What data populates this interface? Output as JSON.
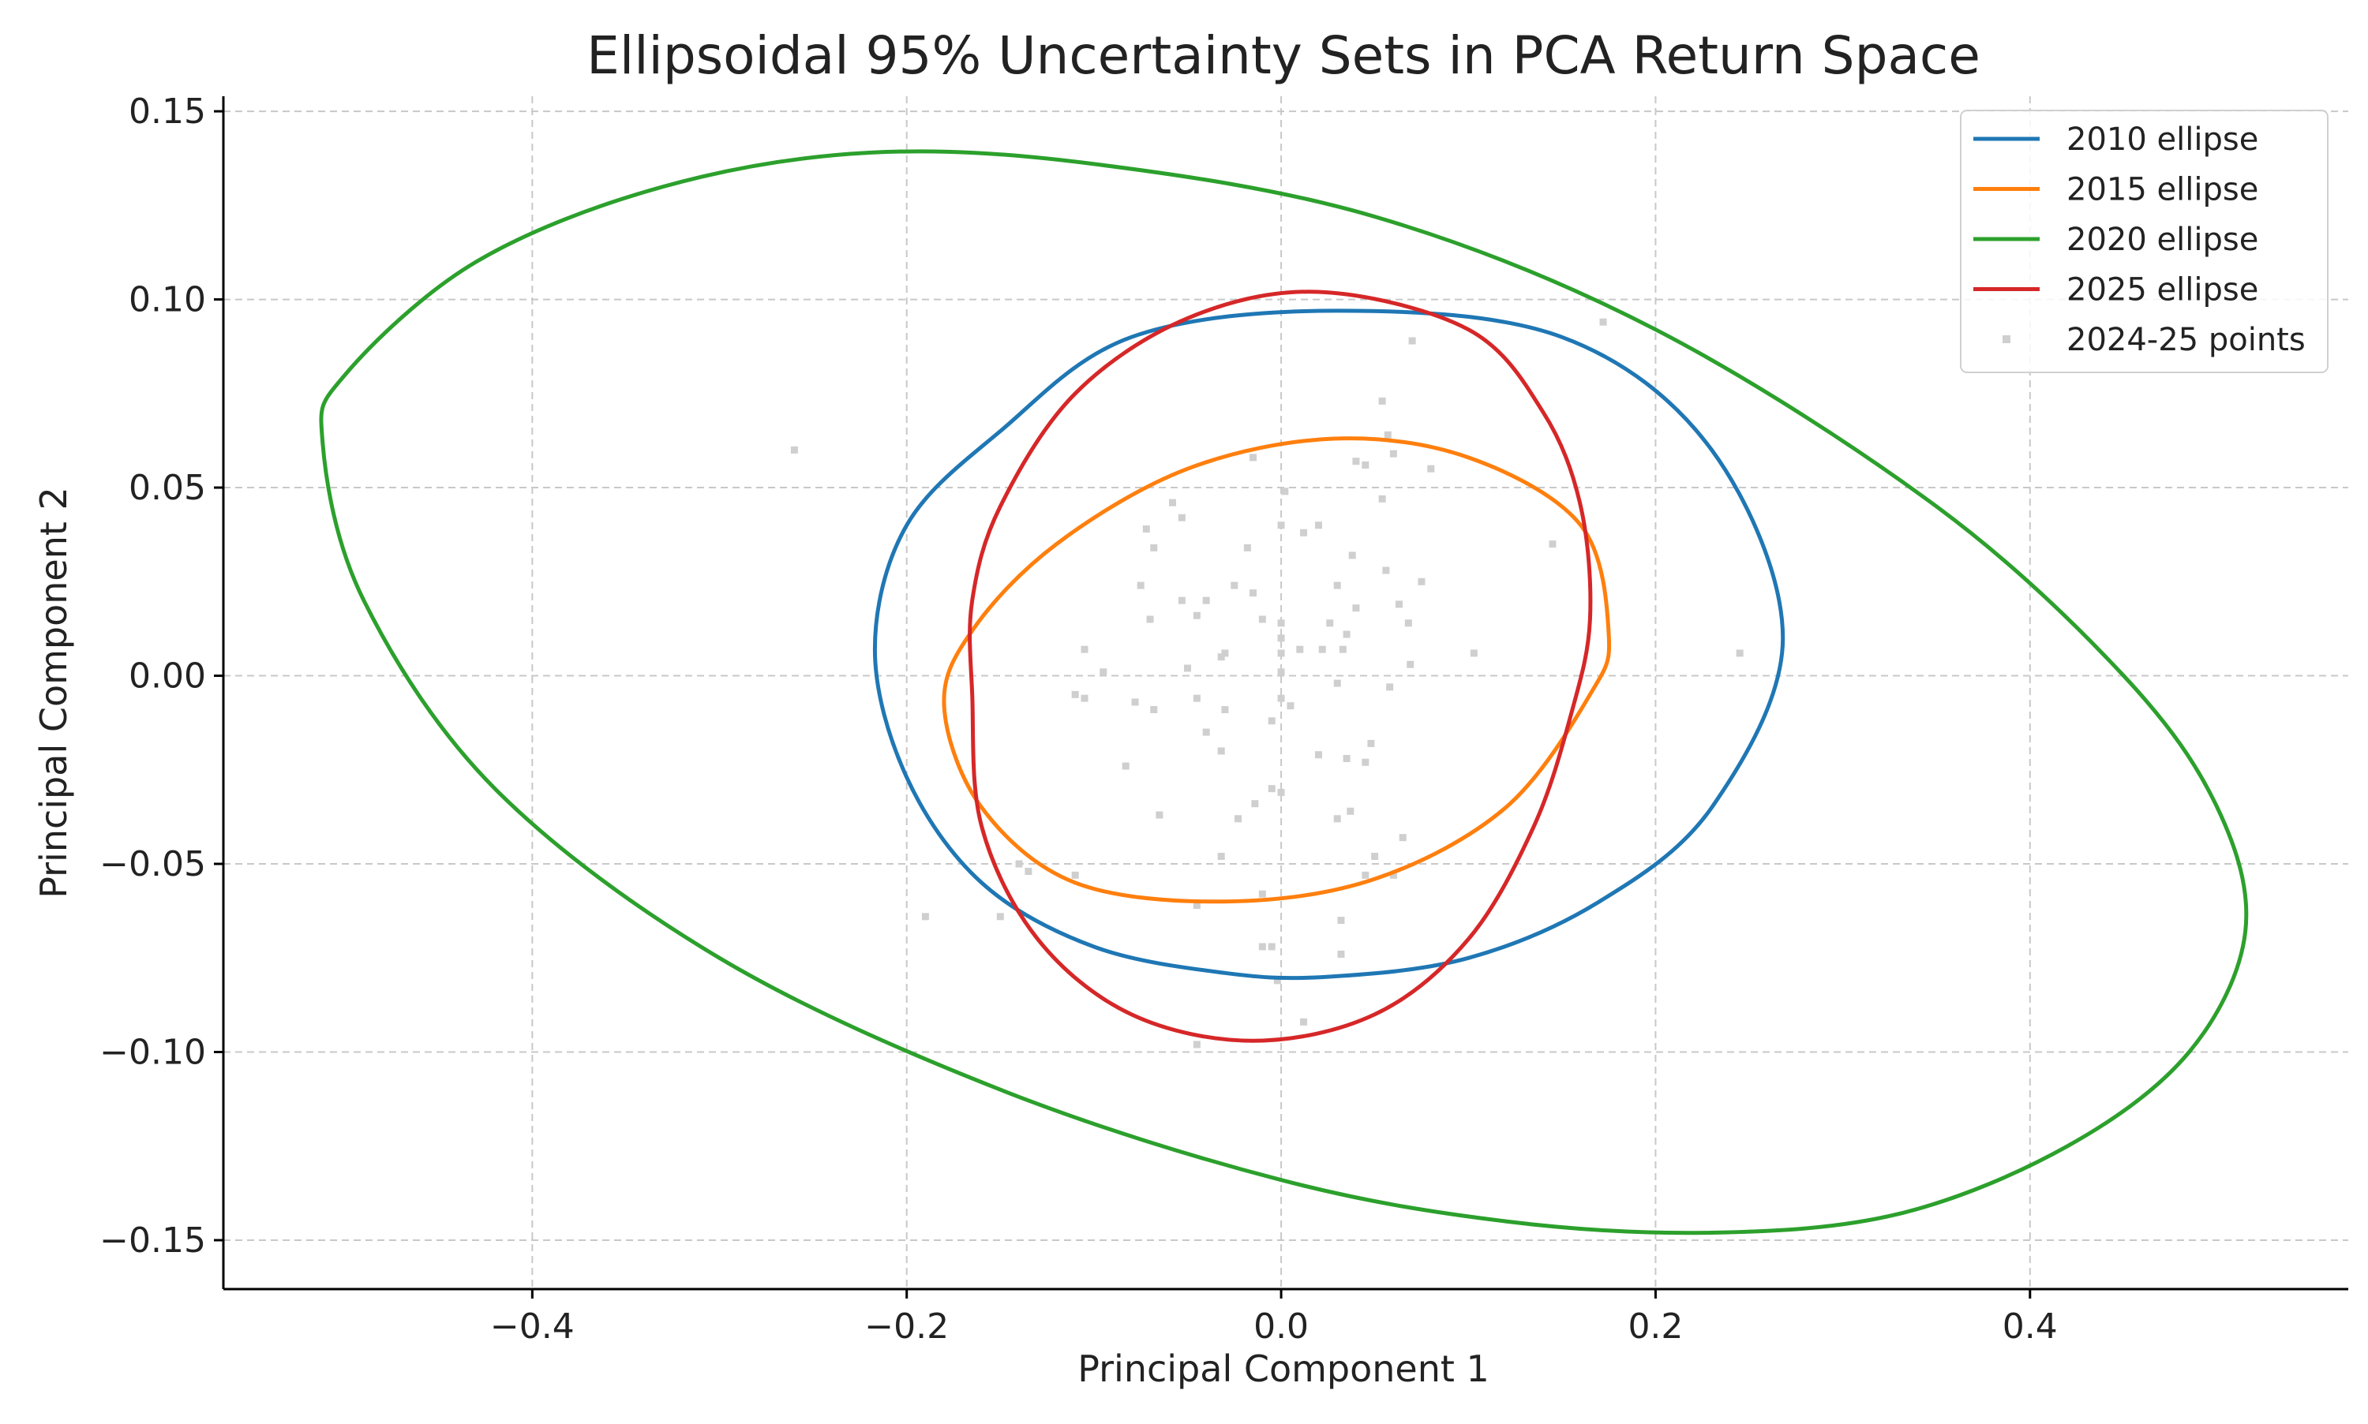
{
  "chart_data": {
    "type": "scatter",
    "title": "Ellipsoidal 95% Uncertainty Sets in PCA Return Space",
    "xlabel": "Principal Component 1",
    "ylabel": "Principal Component 2",
    "xlim": [
      -0.565,
      0.57
    ],
    "ylim": [
      -0.163,
      0.154
    ],
    "grid": true,
    "legend_position": "top-right",
    "x_ticks": [
      -0.4,
      -0.2,
      0.0,
      0.2,
      0.4
    ],
    "x_tick_labels": [
      "−0.4",
      "−0.2",
      "0.0",
      "0.2",
      "0.4"
    ],
    "y_ticks": [
      0.15,
      0.1,
      0.05,
      0.0,
      -0.05,
      -0.1,
      -0.15
    ],
    "y_tick_labels": [
      "0.15",
      "0.10",
      "0.05",
      "0.00",
      "−0.05",
      "−0.10",
      "−0.15"
    ],
    "series": [
      {
        "name": "2010 ellipse",
        "kind": "ellipse",
        "color": "#1f77b4",
        "points": [
          [
            -0.217,
            0.007
          ],
          [
            -0.2,
            -0.027
          ],
          [
            -0.16,
            -0.055
          ],
          [
            -0.1,
            -0.072
          ],
          [
            -0.03,
            -0.079
          ],
          [
            0.025,
            -0.08
          ],
          [
            0.1,
            -0.075
          ],
          [
            0.17,
            -0.06
          ],
          [
            0.23,
            -0.035
          ],
          [
            0.268,
            0.01
          ],
          [
            0.23,
            0.06
          ],
          [
            0.15,
            0.09
          ],
          [
            0.03,
            0.097
          ],
          [
            -0.08,
            0.09
          ],
          [
            -0.15,
            0.065
          ],
          [
            -0.2,
            0.04
          ],
          [
            -0.217,
            0.007
          ]
        ]
      },
      {
        "name": "2015 ellipse",
        "kind": "ellipse",
        "color": "#ff7f0e",
        "points": [
          [
            -0.18,
            -0.008
          ],
          [
            -0.16,
            -0.035
          ],
          [
            -0.11,
            -0.055
          ],
          [
            -0.03,
            -0.06
          ],
          [
            0.05,
            -0.054
          ],
          [
            0.12,
            -0.035
          ],
          [
            0.165,
            -0.005
          ],
          [
            0.175,
            0.011
          ],
          [
            0.16,
            0.04
          ],
          [
            0.1,
            0.058
          ],
          [
            0.028,
            0.063
          ],
          [
            -0.05,
            0.055
          ],
          [
            -0.12,
            0.035
          ],
          [
            -0.165,
            0.012
          ],
          [
            -0.18,
            -0.008
          ]
        ]
      },
      {
        "name": "2020 ellipse",
        "kind": "ellipse",
        "color": "#2ca02c",
        "points": [
          [
            -0.512,
            0.062
          ],
          [
            -0.49,
            0.02
          ],
          [
            -0.42,
            -0.03
          ],
          [
            -0.3,
            -0.075
          ],
          [
            -0.15,
            -0.11
          ],
          [
            0.0,
            -0.134
          ],
          [
            0.12,
            -0.145
          ],
          [
            0.23,
            -0.148
          ],
          [
            0.33,
            -0.143
          ],
          [
            0.42,
            -0.125
          ],
          [
            0.485,
            -0.1
          ],
          [
            0.515,
            -0.068
          ],
          [
            0.5,
            -0.035
          ],
          [
            0.45,
            0.0
          ],
          [
            0.35,
            0.045
          ],
          [
            0.2,
            0.092
          ],
          [
            0.05,
            0.122
          ],
          [
            -0.1,
            0.136
          ],
          [
            -0.22,
            0.139
          ],
          [
            -0.33,
            0.13
          ],
          [
            -0.43,
            0.11
          ],
          [
            -0.5,
            0.08
          ],
          [
            -0.512,
            0.062
          ]
        ]
      },
      {
        "name": "2025 ellipse",
        "kind": "ellipse",
        "color": "#d62728",
        "points": [
          [
            -0.165,
            -0.005
          ],
          [
            -0.16,
            -0.04
          ],
          [
            -0.13,
            -0.07
          ],
          [
            -0.08,
            -0.09
          ],
          [
            -0.015,
            -0.097
          ],
          [
            0.05,
            -0.09
          ],
          [
            0.1,
            -0.07
          ],
          [
            0.135,
            -0.04
          ],
          [
            0.155,
            -0.01
          ],
          [
            0.165,
            0.015
          ],
          [
            0.16,
            0.045
          ],
          [
            0.14,
            0.07
          ],
          [
            0.1,
            0.092
          ],
          [
            0.02,
            0.102
          ],
          [
            -0.05,
            0.095
          ],
          [
            -0.11,
            0.075
          ],
          [
            -0.15,
            0.045
          ],
          [
            -0.165,
            0.02
          ],
          [
            -0.165,
            -0.005
          ]
        ]
      },
      {
        "name": "2024-25 points",
        "kind": "scatter",
        "color": "#cfcfcf",
        "points": [
          [
            -0.26,
            0.06
          ],
          [
            0.172,
            0.094
          ],
          [
            0.07,
            0.089
          ],
          [
            0.054,
            0.073
          ],
          [
            0.057,
            0.064
          ],
          [
            0.06,
            0.059
          ],
          [
            0.04,
            0.057
          ],
          [
            0.045,
            0.056
          ],
          [
            0.08,
            0.055
          ],
          [
            0.054,
            0.047
          ],
          [
            -0.015,
            0.058
          ],
          [
            0.002,
            0.049
          ],
          [
            -0.058,
            0.046
          ],
          [
            -0.072,
            0.039
          ],
          [
            -0.053,
            0.042
          ],
          [
            -0.068,
            0.034
          ],
          [
            0.0,
            0.04
          ],
          [
            0.012,
            0.038
          ],
          [
            0.02,
            0.04
          ],
          [
            -0.018,
            0.034
          ],
          [
            0.038,
            0.032
          ],
          [
            0.145,
            0.035
          ],
          [
            0.056,
            0.028
          ],
          [
            0.075,
            0.025
          ],
          [
            -0.075,
            0.024
          ],
          [
            -0.025,
            0.024
          ],
          [
            -0.015,
            0.022
          ],
          [
            0.03,
            0.024
          ],
          [
            -0.053,
            0.02
          ],
          [
            -0.04,
            0.02
          ],
          [
            -0.045,
            0.016
          ],
          [
            0.04,
            0.018
          ],
          [
            0.063,
            0.019
          ],
          [
            -0.07,
            0.015
          ],
          [
            0.068,
            0.014
          ],
          [
            -0.01,
            0.015
          ],
          [
            0.0,
            0.014
          ],
          [
            0.0,
            0.01
          ],
          [
            0.026,
            0.014
          ],
          [
            0.035,
            0.011
          ],
          [
            -0.03,
            0.006
          ],
          [
            0.0,
            0.006
          ],
          [
            0.022,
            0.007
          ],
          [
            0.033,
            0.007
          ],
          [
            0.01,
            0.007
          ],
          [
            0.103,
            0.006
          ],
          [
            0.245,
            0.006
          ],
          [
            -0.105,
            0.007
          ],
          [
            -0.032,
            0.005
          ],
          [
            -0.05,
            0.002
          ],
          [
            -0.095,
            0.001
          ],
          [
            0.069,
            0.003
          ],
          [
            0.0,
            0.001
          ],
          [
            0.03,
            -0.002
          ],
          [
            0.058,
            -0.003
          ],
          [
            -0.11,
            -0.005
          ],
          [
            -0.105,
            -0.006
          ],
          [
            -0.078,
            -0.007
          ],
          [
            -0.045,
            -0.006
          ],
          [
            0.0,
            -0.006
          ],
          [
            0.005,
            -0.008
          ],
          [
            -0.068,
            -0.009
          ],
          [
            -0.03,
            -0.009
          ],
          [
            -0.005,
            -0.012
          ],
          [
            -0.04,
            -0.015
          ],
          [
            0.048,
            -0.018
          ],
          [
            -0.032,
            -0.02
          ],
          [
            0.02,
            -0.021
          ],
          [
            0.045,
            -0.023
          ],
          [
            0.035,
            -0.022
          ],
          [
            -0.083,
            -0.024
          ],
          [
            -0.005,
            -0.03
          ],
          [
            0.0,
            -0.031
          ],
          [
            -0.014,
            -0.034
          ],
          [
            -0.065,
            -0.037
          ],
          [
            0.03,
            -0.038
          ],
          [
            -0.023,
            -0.038
          ],
          [
            0.037,
            -0.036
          ],
          [
            0.065,
            -0.043
          ],
          [
            -0.032,
            -0.048
          ],
          [
            0.05,
            -0.048
          ],
          [
            -0.14,
            -0.05
          ],
          [
            -0.135,
            -0.052
          ],
          [
            -0.11,
            -0.053
          ],
          [
            0.045,
            -0.053
          ],
          [
            0.06,
            -0.053
          ],
          [
            -0.01,
            -0.058
          ],
          [
            -0.045,
            -0.061
          ],
          [
            -0.19,
            -0.064
          ],
          [
            -0.15,
            -0.064
          ],
          [
            0.032,
            -0.065
          ],
          [
            -0.01,
            -0.072
          ],
          [
            -0.005,
            -0.072
          ],
          [
            0.032,
            -0.074
          ],
          [
            -0.002,
            -0.081
          ],
          [
            0.012,
            -0.092
          ],
          [
            -0.045,
            -0.098
          ]
        ]
      }
    ]
  }
}
